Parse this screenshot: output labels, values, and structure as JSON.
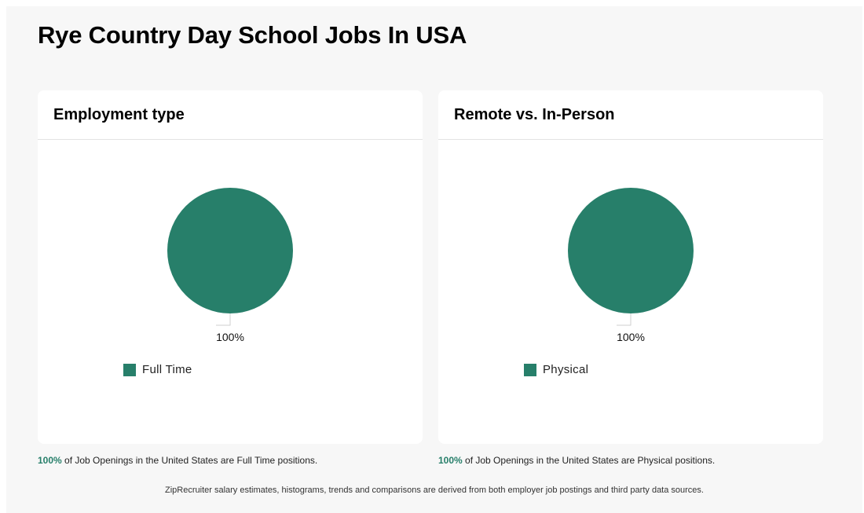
{
  "page": {
    "title": "Rye Country Day School Jobs In USA",
    "footer": "ZipRecruiter salary estimates, histograms, trends and comparisons are derived from both employer job postings and third party data sources."
  },
  "colors": {
    "slice": "#277f6a",
    "accent": "#277f6a"
  },
  "chart_data": [
    {
      "type": "pie",
      "title": "Employment type",
      "slices": [
        {
          "label": "Full Time",
          "value": 100,
          "percent_label": "100%"
        }
      ],
      "legend": "bottom",
      "caption": {
        "highlight": "100%",
        "text": " of Job Openings in the United States are Full Time positions."
      }
    },
    {
      "type": "pie",
      "title": "Remote vs. In-Person",
      "slices": [
        {
          "label": "Physical",
          "value": 100,
          "percent_label": "100%"
        }
      ],
      "legend": "bottom",
      "caption": {
        "highlight": "100%",
        "text": " of Job Openings in the United States are Physical positions."
      }
    }
  ]
}
